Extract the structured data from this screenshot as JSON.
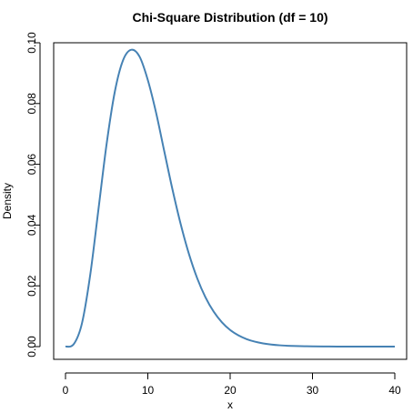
{
  "chart_data": {
    "type": "line",
    "title": "Chi-Square Distribution (df = 10)",
    "xlabel": "x",
    "ylabel": "Density",
    "xlim": [
      0,
      40
    ],
    "ylim": [
      0,
      0.1
    ],
    "x_ticks": [
      0,
      10,
      20,
      30,
      40
    ],
    "x_tick_labels": [
      "0",
      "10",
      "20",
      "30",
      "40"
    ],
    "y_ticks": [
      0,
      0.02,
      0.04,
      0.06,
      0.08,
      0.1
    ],
    "y_tick_labels": [
      "0.00",
      "0.02",
      "0.04",
      "0.06",
      "0.08",
      "0.10"
    ],
    "grid": false,
    "line_color": "#4682B4",
    "series": [
      {
        "x": [
          0,
          1,
          2,
          3,
          4,
          5,
          6,
          7,
          8,
          9,
          10,
          11,
          12,
          13,
          14,
          15,
          16,
          17,
          18,
          19,
          20,
          21,
          22,
          23,
          24,
          25,
          26,
          27,
          28,
          29,
          30,
          32,
          34,
          36,
          38,
          40
        ],
        "values": [
          0,
          0.00079,
          0.00766,
          0.02353,
          0.04511,
          0.0668,
          0.08402,
          0.09431,
          0.0977,
          0.09541,
          0.08773,
          0.07701,
          0.06426,
          0.05164,
          0.04022,
          0.03044,
          0.02248,
          0.01624,
          0.0115,
          0.008,
          0.00547,
          0.00369,
          0.00246,
          0.00162,
          0.00106,
          0.00068,
          0.00043,
          0.00027,
          0.00017,
          0.00011,
          7e-05,
          3e-05,
          1e-05,
          4e-06,
          1.6e-06,
          6e-07
        ]
      }
    ]
  }
}
